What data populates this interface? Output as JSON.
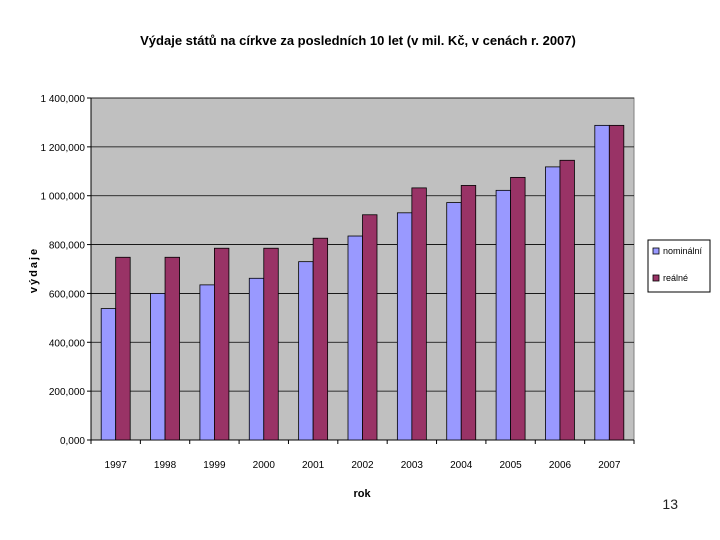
{
  "chart_data": {
    "type": "bar",
    "title": "Výdaje států na církve za posledních 10 let (v mil. Kč, v cenách r. 2007)",
    "xlabel": "rok",
    "ylabel": "výdaje",
    "categories": [
      "1997",
      "1998",
      "1999",
      "2000",
      "2001",
      "2002",
      "2003",
      "2004",
      "2005",
      "2006",
      "2007"
    ],
    "series": [
      {
        "name": "nominální",
        "color": "#9999ff",
        "values": [
          538000,
          600000,
          635000,
          662000,
          730000,
          835000,
          930000,
          972000,
          1022000,
          1118000,
          1288000
        ]
      },
      {
        "name": "reálné",
        "color": "#993366",
        "values": [
          748000,
          748000,
          785000,
          785000,
          826000,
          922000,
          1032000,
          1042000,
          1075000,
          1145000,
          1288000
        ]
      }
    ],
    "ylim": [
      0,
      1400000
    ],
    "yticks": [
      0,
      200000,
      400000,
      600000,
      800000,
      1000000,
      1200000,
      1400000
    ],
    "ytick_labels": [
      "0,000",
      "200,000",
      "400,000",
      "600,000",
      "800,000",
      "1 000,000",
      "1 200,000",
      "1 400,000"
    ],
    "grid": true,
    "legend": "right",
    "plot_background": "#c0c0c0"
  },
  "page": {
    "number": "13"
  }
}
